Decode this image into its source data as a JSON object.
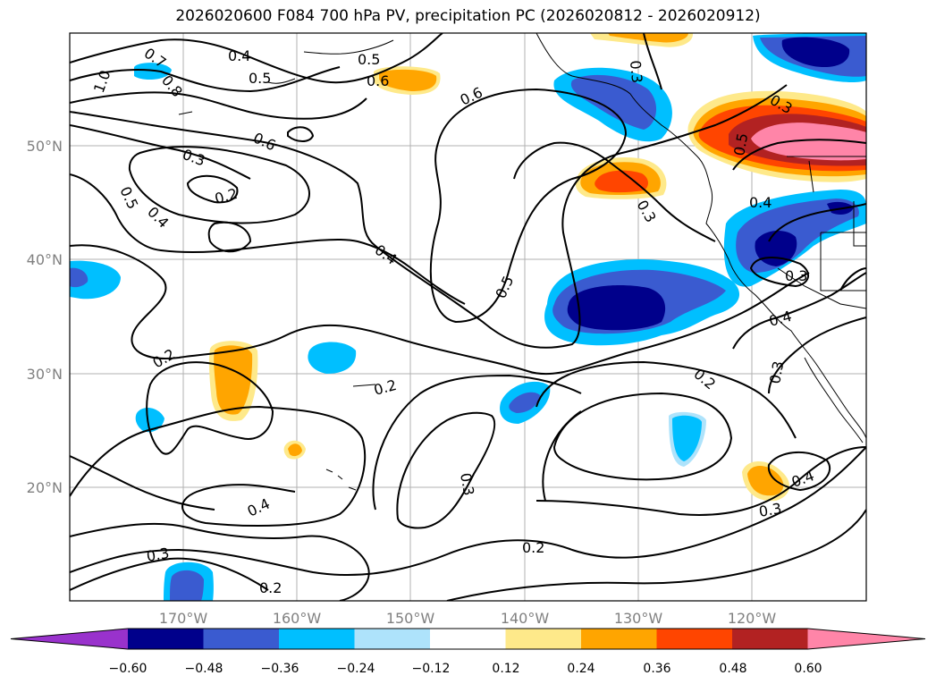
{
  "title": "2026020600 F084 700 hPa PV, precipitation PC (2026020812 - 2026020912)",
  "lat_labels": [
    "50°N",
    "40°N",
    "30°N",
    "20°N"
  ],
  "lon_labels": [
    "170°W",
    "160°W",
    "150°W",
    "140°W",
    "130°W",
    "120°W"
  ],
  "contour_labels": [
    "0.4",
    "0.5",
    "0.7",
    "0.8",
    "1.0",
    "0.6",
    "0.5",
    "0.6",
    "0.3",
    "0.3",
    "0.2",
    "0.5",
    "0.4",
    "0.4",
    "0.5",
    "0.6",
    "0.3",
    "0.5",
    "0.4",
    "0.3",
    "0.4",
    "0.3",
    "0.2",
    "0.2",
    "0.3",
    "0.4",
    "0.2",
    "0.3",
    "0.4",
    "0.3",
    "0.2",
    "0.3",
    "0.2"
  ],
  "colorbar": {
    "colors": [
      "#9932cc",
      "#00008b",
      "#3a5bd0",
      "#00bfff",
      "#aee3fb",
      "#ffffff",
      "#fee98a",
      "#ffa500",
      "#ff4500",
      "#b22222",
      "#ff85a8"
    ],
    "ticks": [
      "−0.60",
      "−0.48",
      "−0.36",
      "−0.24",
      "−0.12",
      "0.12",
      "0.24",
      "0.36",
      "0.48",
      "0.60"
    ]
  }
}
